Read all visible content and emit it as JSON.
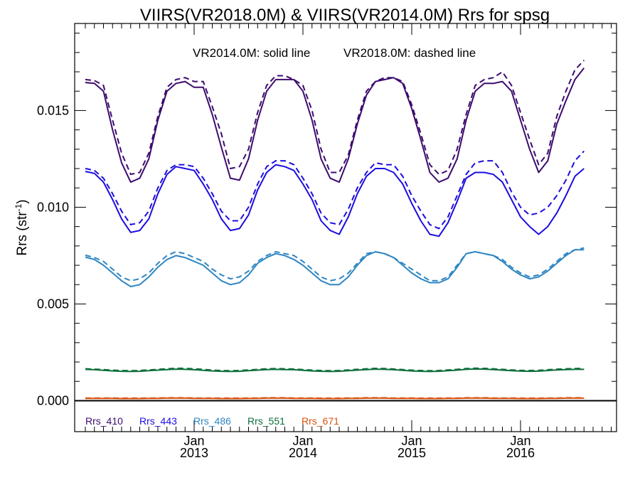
{
  "chart_data": {
    "type": "line",
    "title": "VIIRS(VR2018.0M) & VIIRS(VR2014.0M)  Rrs for spsg",
    "annotation_solid": "VR2014.0M: solid line",
    "annotation_dashed": "VR2018.0M: dashed line",
    "ylabel": "Rrs (str",
    "ylabel_sup": "-1",
    "ylabel_close": ")",
    "ylim": [
      -0.0016,
      0.0195
    ],
    "y_ticks": [
      {
        "value": 0.0,
        "label": "0.000"
      },
      {
        "value": 0.005,
        "label": "0.005"
      },
      {
        "value": 0.01,
        "label": "0.010"
      },
      {
        "value": 0.015,
        "label": "0.015"
      }
    ],
    "x_ticks": [
      {
        "month_index": 12,
        "line1": "Jan",
        "line2": "2013"
      },
      {
        "month_index": 24,
        "line1": "Jan",
        "line2": "2014"
      },
      {
        "month_index": 36,
        "line1": "Jan",
        "line2": "2015"
      },
      {
        "month_index": 48,
        "line1": "Jan",
        "line2": "2016"
      }
    ],
    "x_start": "2012-01",
    "x_range_months": [
      0,
      60
    ],
    "zero_line": true,
    "legend_position": "bottom-left",
    "series": [
      {
        "name": "Rrs_410",
        "color": "#3d0b6e",
        "solid": [
          0.01645,
          0.0164,
          0.016,
          0.014,
          0.0123,
          0.0113,
          0.0115,
          0.0125,
          0.0145,
          0.016,
          0.0164,
          0.0165,
          0.0162,
          0.0162,
          0.0148,
          0.0131,
          0.0115,
          0.0114,
          0.0125,
          0.0145,
          0.016,
          0.0166,
          0.0166,
          0.0166,
          0.016,
          0.0145,
          0.0125,
          0.0115,
          0.0113,
          0.0125,
          0.0143,
          0.0158,
          0.0165,
          0.0166,
          0.0167,
          0.0164,
          0.0151,
          0.0135,
          0.0118,
          0.0113,
          0.0115,
          0.0125,
          0.0145,
          0.016,
          0.0164,
          0.0164,
          0.0165,
          0.016,
          0.0145,
          0.013,
          0.0118,
          0.0124,
          0.0143,
          0.0155,
          0.0166,
          0.0172
        ],
        "dashed": [
          0.0166,
          0.01655,
          0.0163,
          0.0145,
          0.0128,
          0.0117,
          0.0118,
          0.0128,
          0.0147,
          0.0162,
          0.0166,
          0.0167,
          0.0165,
          0.0165,
          0.0152,
          0.0138,
          0.012,
          0.0121,
          0.013,
          0.0149,
          0.0163,
          0.0168,
          0.0168,
          0.0166,
          0.0163,
          0.015,
          0.013,
          0.0118,
          0.0118,
          0.0127,
          0.0145,
          0.016,
          0.0165,
          0.0167,
          0.0167,
          0.0165,
          0.0153,
          0.0138,
          0.0122,
          0.0117,
          0.0119,
          0.013,
          0.0148,
          0.0163,
          0.0166,
          0.0167,
          0.017,
          0.0163,
          0.0149,
          0.0135,
          0.0122,
          0.0128,
          0.0147,
          0.016,
          0.0171,
          0.0176
        ]
      },
      {
        "name": "Rrs_443",
        "color": "#1c0de0",
        "solid": [
          0.01185,
          0.01175,
          0.0113,
          0.0104,
          0.0094,
          0.0087,
          0.0088,
          0.0094,
          0.0107,
          0.0117,
          0.0121,
          0.012,
          0.0119,
          0.0112,
          0.0104,
          0.0094,
          0.0088,
          0.0089,
          0.0096,
          0.0109,
          0.0118,
          0.0122,
          0.0121,
          0.0119,
          0.0112,
          0.0104,
          0.0093,
          0.0088,
          0.0086,
          0.0095,
          0.0107,
          0.0116,
          0.012,
          0.012,
          0.0118,
          0.0112,
          0.0102,
          0.0093,
          0.0086,
          0.0085,
          0.0092,
          0.0103,
          0.0115,
          0.0118,
          0.0118,
          0.0117,
          0.0113,
          0.0104,
          0.0095,
          0.009,
          0.0086,
          0.009,
          0.0097,
          0.0106,
          0.0116,
          0.012
        ],
        "dashed": [
          0.012,
          0.0119,
          0.0115,
          0.0107,
          0.0098,
          0.0091,
          0.0092,
          0.0098,
          0.011,
          0.0119,
          0.0122,
          0.0122,
          0.0121,
          0.0115,
          0.0107,
          0.0098,
          0.0093,
          0.0093,
          0.01,
          0.0112,
          0.0121,
          0.0124,
          0.0124,
          0.0122,
          0.0115,
          0.0107,
          0.0097,
          0.0092,
          0.0091,
          0.0099,
          0.011,
          0.0118,
          0.0123,
          0.0122,
          0.0122,
          0.0116,
          0.0106,
          0.0098,
          0.0091,
          0.0089,
          0.0095,
          0.0106,
          0.0117,
          0.0123,
          0.0124,
          0.0124,
          0.0118,
          0.0108,
          0.01,
          0.0096,
          0.0097,
          0.01,
          0.0106,
          0.0114,
          0.0124,
          0.0129
        ]
      },
      {
        "name": "Rrs_486",
        "color": "#2e86c2",
        "solid": [
          0.00742,
          0.0073,
          0.007,
          0.0066,
          0.0062,
          0.0059,
          0.006,
          0.0064,
          0.0069,
          0.0073,
          0.0075,
          0.0074,
          0.0072,
          0.007,
          0.0066,
          0.0062,
          0.006,
          0.0061,
          0.0065,
          0.0071,
          0.0074,
          0.0076,
          0.0075,
          0.0073,
          0.007,
          0.0066,
          0.0062,
          0.006,
          0.006,
          0.0064,
          0.007,
          0.0075,
          0.0077,
          0.0076,
          0.0074,
          0.007,
          0.0066,
          0.0063,
          0.0061,
          0.0061,
          0.0063,
          0.0069,
          0.0076,
          0.0077,
          0.0076,
          0.0075,
          0.0072,
          0.0068,
          0.0065,
          0.0063,
          0.0064,
          0.0067,
          0.0071,
          0.0075,
          0.0078,
          0.0078
        ],
        "dashed": [
          0.00752,
          0.0074,
          0.0072,
          0.0068,
          0.0064,
          0.0062,
          0.0063,
          0.0066,
          0.0071,
          0.0075,
          0.0077,
          0.0076,
          0.0074,
          0.0072,
          0.0068,
          0.0065,
          0.0063,
          0.0064,
          0.0067,
          0.0072,
          0.0075,
          0.0077,
          0.0076,
          0.0075,
          0.0072,
          0.0068,
          0.0064,
          0.0062,
          0.0063,
          0.0066,
          0.0071,
          0.0076,
          0.0077,
          0.0076,
          0.0074,
          0.0071,
          0.0068,
          0.0065,
          0.0062,
          0.0062,
          0.0064,
          0.007,
          0.0076,
          0.0077,
          0.0076,
          0.0075,
          0.0073,
          0.0069,
          0.0066,
          0.0064,
          0.0065,
          0.0068,
          0.0072,
          0.0076,
          0.0078,
          0.0079
        ]
      },
      {
        "name": "Rrs_551",
        "color": "#0d6e3a",
        "solid": [
          0.00162,
          0.0016,
          0.00157,
          0.00154,
          0.00152,
          0.00151,
          0.00152,
          0.00155,
          0.00158,
          0.00161,
          0.00163,
          0.00162,
          0.0016,
          0.00157,
          0.00154,
          0.00152,
          0.00151,
          0.00152,
          0.00155,
          0.00158,
          0.00161,
          0.00162,
          0.00161,
          0.0016,
          0.00157,
          0.00154,
          0.00152,
          0.00151,
          0.00152,
          0.00155,
          0.00158,
          0.00161,
          0.00163,
          0.00162,
          0.0016,
          0.00157,
          0.00154,
          0.00152,
          0.00151,
          0.00152,
          0.00155,
          0.00158,
          0.00162,
          0.00164,
          0.00163,
          0.00161,
          0.00158,
          0.00155,
          0.00153,
          0.00152,
          0.00153,
          0.00156,
          0.00159,
          0.00161,
          0.00162,
          0.00162
        ],
        "dashed": [
          0.00165,
          0.00163,
          0.00161,
          0.00158,
          0.00156,
          0.00155,
          0.00156,
          0.00159,
          0.00162,
          0.00165,
          0.00168,
          0.00167,
          0.00165,
          0.00162,
          0.00158,
          0.00156,
          0.00155,
          0.00156,
          0.00159,
          0.00162,
          0.00165,
          0.00166,
          0.00165,
          0.00164,
          0.00161,
          0.00158,
          0.00156,
          0.00155,
          0.00156,
          0.00159,
          0.00162,
          0.00165,
          0.00167,
          0.00166,
          0.00164,
          0.00161,
          0.00158,
          0.00156,
          0.00155,
          0.00156,
          0.00159,
          0.00162,
          0.00166,
          0.00168,
          0.00167,
          0.00165,
          0.00162,
          0.00159,
          0.00157,
          0.00156,
          0.00157,
          0.0016,
          0.00163,
          0.00165,
          0.00166,
          0.00167
        ]
      },
      {
        "name": "Rrs_671",
        "color": "#d9520f",
        "solid": [
          0.00012,
          0.00012,
          0.00012,
          0.00012,
          0.00011,
          0.00011,
          0.00011,
          0.00012,
          0.00012,
          0.00013,
          0.00013,
          0.00013,
          0.00012,
          0.00012,
          0.00012,
          0.00011,
          0.00011,
          0.00011,
          0.00012,
          0.00012,
          0.00013,
          0.00013,
          0.00013,
          0.00012,
          0.00012,
          0.00012,
          0.00011,
          0.00011,
          0.00011,
          0.00012,
          0.00012,
          0.00013,
          0.00013,
          0.00013,
          0.00012,
          0.00012,
          0.00012,
          0.00011,
          0.00011,
          0.00011,
          0.00012,
          0.00012,
          0.00013,
          0.00013,
          0.00013,
          0.00012,
          0.00012,
          0.00012,
          0.00011,
          0.00011,
          0.00011,
          0.00012,
          0.00012,
          0.00013,
          0.00013,
          0.00013
        ],
        "dashed": [
          0.00014,
          0.00014,
          0.00014,
          0.00014,
          0.00013,
          0.00013,
          0.00013,
          0.00014,
          0.00014,
          0.00015,
          0.00015,
          0.00015,
          0.00014,
          0.00014,
          0.00014,
          0.00013,
          0.00013,
          0.00013,
          0.00014,
          0.00014,
          0.00015,
          0.00015,
          0.00015,
          0.00014,
          0.00014,
          0.00014,
          0.00013,
          0.00013,
          0.00013,
          0.00014,
          0.00014,
          0.00015,
          0.00015,
          0.00015,
          0.00014,
          0.00014,
          0.00014,
          0.00013,
          0.00013,
          0.00013,
          0.00014,
          0.00014,
          0.00015,
          0.00015,
          0.00015,
          0.00014,
          0.00014,
          0.00014,
          0.00013,
          0.00013,
          0.00013,
          0.00014,
          0.00014,
          0.00015,
          0.00015,
          0.00015
        ]
      }
    ]
  }
}
